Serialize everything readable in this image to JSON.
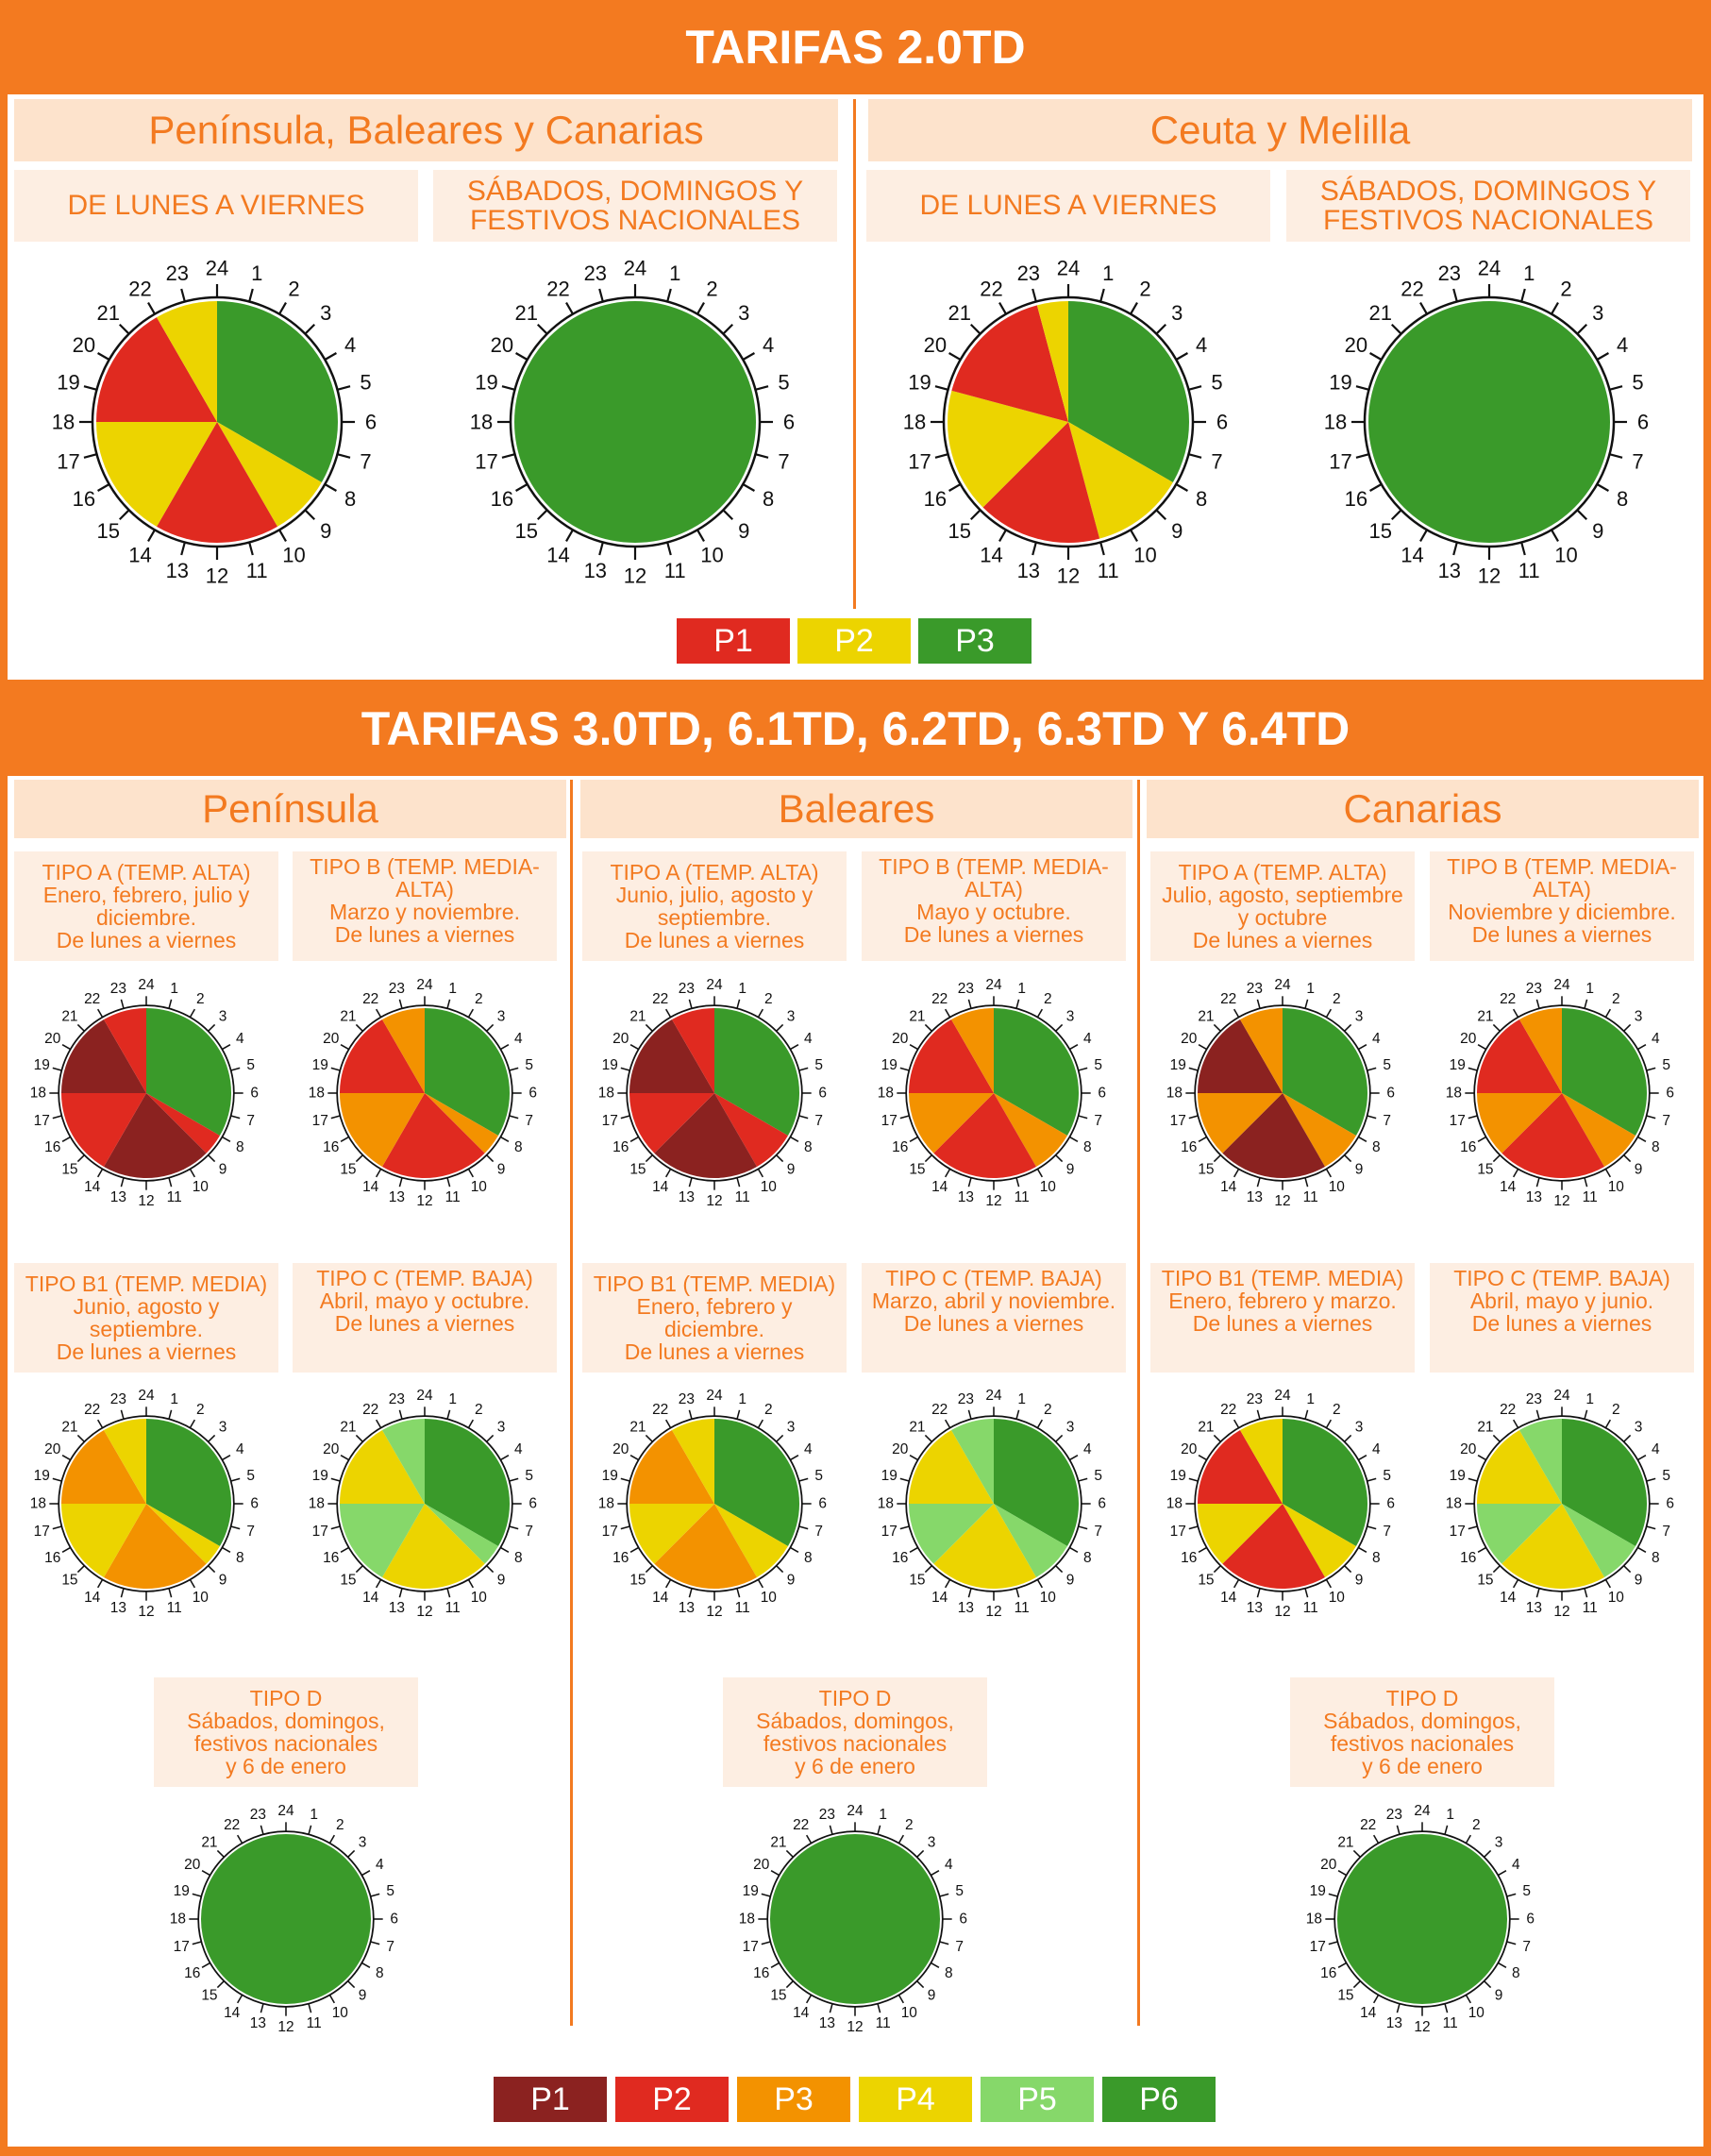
{
  "colors": {
    "orange": "#f37a20",
    "label_bg": "#fdeee2",
    "head_bg": "#fde3cc",
    "tariff2": {
      "P1": "#e02a20",
      "P2": "#ecd400",
      "P3": "#3a9a2a"
    },
    "tariff3": {
      "P1": "#8b2220",
      "P2": "#e02a20",
      "P3": "#f39200",
      "P4": "#ecd400",
      "P5": "#86d86a",
      "P6": "#3a9a2a"
    }
  },
  "top": {
    "banner": "TARIFAS 2.0TD",
    "regions": [
      "Península, Baleares y Canarias",
      "Ceuta y Melilla"
    ],
    "day_labels": [
      "DE LUNES A VIERNES",
      "SÁBADOS, DOMINGOS Y\nFESTIVOS NACIONALES"
    ],
    "legend": [
      "P1",
      "P2",
      "P3"
    ]
  },
  "bottom": {
    "banner": "TARIFAS 3.0TD, 6.1TD, 6.2TD, 6.3TD Y 6.4TD",
    "regions": [
      {
        "name": "Península",
        "types": [
          "TIPO A (TEMP. ALTA)\nEnero, febrero, julio y\ndiciembre.\nDe lunes a viernes",
          "TIPO B (TEMP. MEDIA-ALTA)\nMarzo y noviembre.\nDe lunes a viernes",
          "TIPO B1 (TEMP. MEDIA)\nJunio, agosto y\nseptiembre.\nDe lunes a viernes",
          "TIPO C (TEMP. BAJA)\nAbril, mayo y octubre.\nDe lunes a viernes",
          "TIPO D\nSábados, domingos,\nfestivos nacionales\ny 6 de enero"
        ]
      },
      {
        "name": "Baleares",
        "types": [
          "TIPO A (TEMP. ALTA)\nJunio, julio, agosto y\nseptiembre.\nDe lunes a viernes",
          "TIPO B (TEMP. MEDIA-ALTA)\nMayo y octubre.\nDe lunes a viernes",
          "TIPO B1 (TEMP. MEDIA)\nEnero, febrero y\ndiciembre.\nDe lunes a viernes",
          "TIPO C (TEMP. BAJA)\nMarzo, abril y noviembre.\nDe lunes a viernes",
          "TIPO D\nSábados, domingos,\nfestivos nacionales\ny 6 de enero"
        ]
      },
      {
        "name": "Canarias",
        "types": [
          "TIPO A (TEMP. ALTA)\nJulio, agosto, septiembre\ny octubre\nDe lunes a viernes",
          "TIPO B (TEMP. MEDIA-ALTA)\nNoviembre y diciembre.\nDe lunes a viernes",
          "TIPO B1 (TEMP. MEDIA)\nEnero, febrero y marzo.\nDe lunes a viernes",
          "TIPO C (TEMP. BAJA)\nAbril, mayo y junio.\nDe lunes a viernes",
          "TIPO D\nSábados, domingos,\nfestivos nacionales\ny 6 de enero"
        ]
      }
    ],
    "legend": [
      "P1",
      "P2",
      "P3",
      "P4",
      "P5",
      "P6"
    ]
  },
  "hour_labels": [
    "24",
    "1",
    "2",
    "3",
    "4",
    "5",
    "6",
    "7",
    "8",
    "9",
    "10",
    "11",
    "12",
    "13",
    "14",
    "15",
    "16",
    "17",
    "18",
    "19",
    "20",
    "21",
    "22",
    "23"
  ],
  "clocks": {
    "t2_peninsula_weekday": [
      [
        0,
        8,
        "P3"
      ],
      [
        8,
        10,
        "P2"
      ],
      [
        10,
        14,
        "P1"
      ],
      [
        14,
        18,
        "P2"
      ],
      [
        18,
        22,
        "P1"
      ],
      [
        22,
        24,
        "P2"
      ]
    ],
    "t2_weekend": [
      [
        0,
        24,
        "P3"
      ]
    ],
    "t2_ceuta_weekday": [
      [
        0,
        8,
        "P3"
      ],
      [
        8,
        11,
        "P2"
      ],
      [
        11,
        15,
        "P1"
      ],
      [
        15,
        19,
        "P2"
      ],
      [
        19,
        23,
        "P1"
      ],
      [
        23,
        24,
        "P2"
      ]
    ],
    "pen_A": [
      [
        0,
        8,
        "P6"
      ],
      [
        8,
        9,
        "P2"
      ],
      [
        9,
        14,
        "P1"
      ],
      [
        14,
        18,
        "P2"
      ],
      [
        18,
        22,
        "P1"
      ],
      [
        22,
        24,
        "P2"
      ]
    ],
    "pen_B": [
      [
        0,
        8,
        "P6"
      ],
      [
        8,
        9,
        "P3"
      ],
      [
        9,
        14,
        "P2"
      ],
      [
        14,
        18,
        "P3"
      ],
      [
        18,
        22,
        "P2"
      ],
      [
        22,
        24,
        "P3"
      ]
    ],
    "pen_B1": [
      [
        0,
        8,
        "P6"
      ],
      [
        8,
        9,
        "P4"
      ],
      [
        9,
        14,
        "P3"
      ],
      [
        14,
        18,
        "P4"
      ],
      [
        18,
        22,
        "P3"
      ],
      [
        22,
        24,
        "P4"
      ]
    ],
    "pen_C": [
      [
        0,
        8,
        "P6"
      ],
      [
        8,
        9,
        "P5"
      ],
      [
        9,
        14,
        "P4"
      ],
      [
        14,
        18,
        "P5"
      ],
      [
        18,
        22,
        "P4"
      ],
      [
        22,
        24,
        "P5"
      ]
    ],
    "weekend_D": [
      [
        0,
        24,
        "P6"
      ]
    ],
    "bal_A": [
      [
        0,
        8,
        "P6"
      ],
      [
        8,
        10,
        "P2"
      ],
      [
        10,
        15,
        "P1"
      ],
      [
        15,
        18,
        "P2"
      ],
      [
        18,
        22,
        "P1"
      ],
      [
        22,
        24,
        "P2"
      ]
    ],
    "bal_B": [
      [
        0,
        8,
        "P6"
      ],
      [
        8,
        10,
        "P3"
      ],
      [
        10,
        15,
        "P2"
      ],
      [
        15,
        18,
        "P3"
      ],
      [
        18,
        22,
        "P2"
      ],
      [
        22,
        24,
        "P3"
      ]
    ],
    "bal_B1": [
      [
        0,
        8,
        "P6"
      ],
      [
        8,
        10,
        "P4"
      ],
      [
        10,
        15,
        "P3"
      ],
      [
        15,
        18,
        "P4"
      ],
      [
        18,
        22,
        "P3"
      ],
      [
        22,
        24,
        "P4"
      ]
    ],
    "bal_C": [
      [
        0,
        8,
        "P6"
      ],
      [
        8,
        10,
        "P5"
      ],
      [
        10,
        15,
        "P4"
      ],
      [
        15,
        18,
        "P5"
      ],
      [
        18,
        22,
        "P4"
      ],
      [
        22,
        24,
        "P5"
      ]
    ],
    "can_A": [
      [
        0,
        8,
        "P6"
      ],
      [
        8,
        10,
        "P3"
      ],
      [
        10,
        15,
        "P1"
      ],
      [
        15,
        18,
        "P3"
      ],
      [
        18,
        22,
        "P1"
      ],
      [
        22,
        24,
        "P3"
      ]
    ],
    "can_B": [
      [
        0,
        8,
        "P6"
      ],
      [
        8,
        10,
        "P3"
      ],
      [
        10,
        15,
        "P2"
      ],
      [
        15,
        18,
        "P3"
      ],
      [
        18,
        22,
        "P2"
      ],
      [
        22,
        24,
        "P3"
      ]
    ],
    "can_B1": [
      [
        0,
        8,
        "P6"
      ],
      [
        8,
        10,
        "P4"
      ],
      [
        10,
        15,
        "P2"
      ],
      [
        15,
        18,
        "P4"
      ],
      [
        18,
        22,
        "P2"
      ],
      [
        22,
        24,
        "P4"
      ]
    ],
    "can_C": [
      [
        0,
        8,
        "P6"
      ],
      [
        8,
        10,
        "P5"
      ],
      [
        10,
        15,
        "P4"
      ],
      [
        15,
        18,
        "P5"
      ],
      [
        18,
        22,
        "P4"
      ],
      [
        22,
        24,
        "P5"
      ]
    ]
  }
}
